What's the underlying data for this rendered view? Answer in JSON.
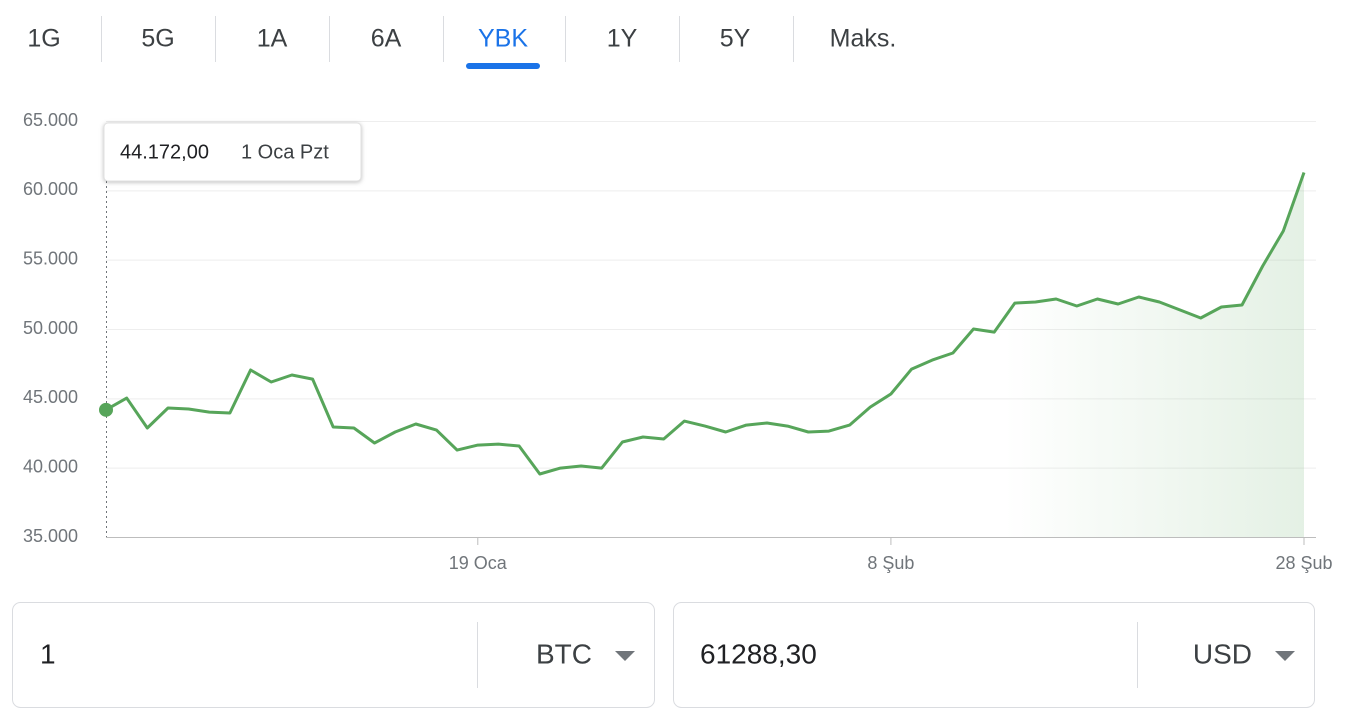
{
  "tabs": {
    "items": [
      "1G",
      "5G",
      "1A",
      "6A",
      "YBK",
      "1Y",
      "5Y",
      "Maks."
    ],
    "active": 4
  },
  "tooltip": {
    "value_label": "44.172,00",
    "date": "1 Oca Pzt"
  },
  "chart_data": {
    "type": "line",
    "x": [
      "1 Oca",
      "2 Oca",
      "3 Oca",
      "4 Oca",
      "5 Oca",
      "6 Oca",
      "7 Oca",
      "8 Oca",
      "9 Oca",
      "10 Oca",
      "11 Oca",
      "12 Oca",
      "13 Oca",
      "14 Oca",
      "15 Oca",
      "16 Oca",
      "17 Oca",
      "18 Oca",
      "19 Oca",
      "20 Oca",
      "21 Oca",
      "22 Oca",
      "23 Oca",
      "24 Oca",
      "25 Oca",
      "26 Oca",
      "27 Oca",
      "28 Oca",
      "29 Oca",
      "30 Oca",
      "31 Oca",
      "1 Şub",
      "2 Şub",
      "3 Şub",
      "4 Şub",
      "5 Şub",
      "6 Şub",
      "7 Şub",
      "8 Şub",
      "9 Şub",
      "10 Şub",
      "11 Şub",
      "12 Şub",
      "13 Şub",
      "14 Şub",
      "15 Şub",
      "16 Şub",
      "17 Şub",
      "18 Şub",
      "19 Şub",
      "20 Şub",
      "21 Şub",
      "22 Şub",
      "23 Şub",
      "24 Şub",
      "25 Şub",
      "26 Şub",
      "27 Şub",
      "28 Şub"
    ],
    "series": [
      {
        "color": "#57a55a",
        "values": [
          44172,
          45020,
          42860,
          44300,
          44230,
          44010,
          43940,
          47040,
          46180,
          46680,
          46390,
          42930,
          42860,
          41780,
          42570,
          43150,
          42710,
          41270,
          41630,
          41700,
          41560,
          39540,
          39970,
          40120,
          39970,
          41850,
          42210,
          42070,
          43360,
          43000,
          42570,
          43070,
          43220,
          43000,
          42570,
          42640,
          43070,
          44370,
          45310,
          47110,
          47760,
          48270,
          50000,
          49780,
          51870,
          51950,
          52160,
          51660,
          52160,
          51800,
          52310,
          51950,
          51370,
          50790,
          51590,
          51730,
          54540,
          57070,
          61288.3
        ]
      }
    ],
    "ylim": [
      35000,
      65000
    ],
    "yticks": [
      {
        "value": 35000,
        "label": "35.000"
      },
      {
        "value": 40000,
        "label": "40.000"
      },
      {
        "value": 45000,
        "label": "45.000"
      },
      {
        "value": 50000,
        "label": "50.000"
      },
      {
        "value": 55000,
        "label": "55.000"
      },
      {
        "value": 60000,
        "label": "60.000"
      },
      {
        "value": 65000,
        "label": "65.000"
      }
    ],
    "xticks": [
      "19 Oca",
      "8 Şub",
      "28 Şub"
    ],
    "grid": true
  },
  "converter": {
    "from_amount": "1",
    "from_currency": "BTC",
    "to_amount": "61288,30",
    "to_currency": "USD"
  }
}
